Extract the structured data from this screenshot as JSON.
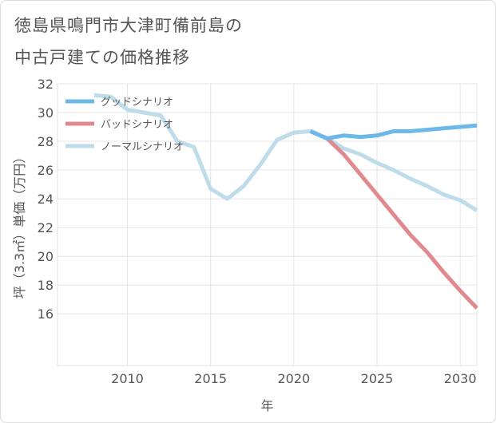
{
  "title_lines": [
    "徳島県鳴門市大津町備前島の",
    "中古戸建ての価格推移"
  ],
  "chart_data": {
    "type": "line",
    "xlabel": "年",
    "ylabel": "坪（3.3㎡）単価（万円）",
    "xlim": [
      2005.8,
      2031
    ],
    "ylim": [
      12.4,
      32
    ],
    "xticks": [
      2010,
      2015,
      2020,
      2025,
      2030
    ],
    "yticks": [
      16,
      18,
      20,
      22,
      24,
      26,
      28,
      30,
      32
    ],
    "grid": true,
    "legend_position": "top-left",
    "series": [
      {
        "name": "グッドシナリオ",
        "color": "#6cb8e8",
        "x": [
          2021,
          2022,
          2023,
          2024,
          2025,
          2026,
          2027,
          2028,
          2029,
          2030,
          2031
        ],
        "y": [
          28.7,
          28.2,
          28.4,
          28.3,
          28.4,
          28.7,
          28.7,
          28.8,
          28.9,
          29.0,
          29.1
        ]
      },
      {
        "name": "バッドシナリオ",
        "color": "#e08a8f",
        "x": [
          2021,
          2022,
          2023,
          2024,
          2025,
          2026,
          2027,
          2028,
          2029,
          2030,
          2031
        ],
        "y": [
          28.7,
          28.2,
          27.1,
          25.7,
          24.3,
          22.9,
          21.5,
          20.3,
          18.9,
          17.6,
          16.4
        ]
      },
      {
        "name": "ノーマルシナリオ",
        "color": "#bfdceb",
        "x": [
          2008,
          2009,
          2010,
          2011,
          2012,
          2013,
          2014,
          2015,
          2016,
          2017,
          2018,
          2019,
          2020,
          2021,
          2022,
          2023,
          2024,
          2025,
          2026,
          2027,
          2028,
          2029,
          2030,
          2031
        ],
        "y": [
          31.2,
          31.1,
          30.2,
          30.0,
          29.8,
          28.0,
          27.6,
          24.7,
          24.0,
          24.9,
          26.4,
          28.1,
          28.6,
          28.7,
          28.2,
          27.5,
          27.1,
          26.5,
          26.0,
          25.4,
          24.9,
          24.3,
          23.9,
          23.2
        ]
      }
    ]
  }
}
